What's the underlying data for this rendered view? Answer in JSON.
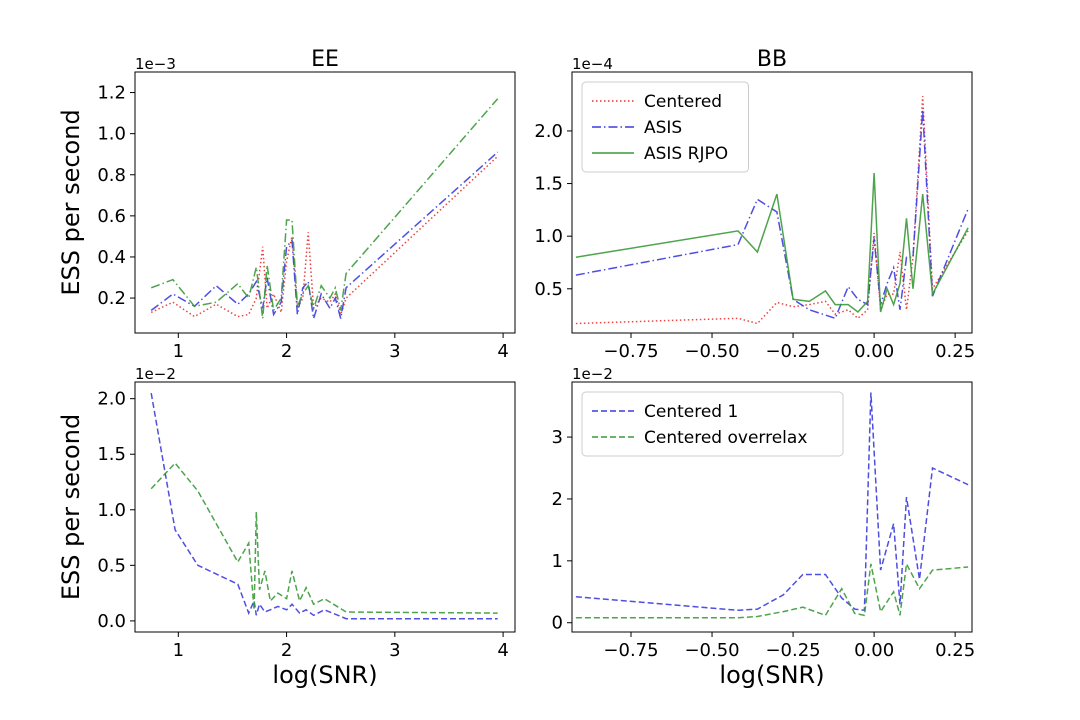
{
  "chart_data": [
    {
      "type": "line",
      "title": "EE",
      "y_label": "ESS per second",
      "offset_text": "1e−3",
      "x": [
        0.75,
        0.95,
        1.15,
        1.35,
        1.55,
        1.65,
        1.72,
        1.78,
        1.82,
        1.88,
        1.95,
        2.0,
        2.05,
        2.1,
        2.15,
        2.2,
        2.25,
        2.32,
        2.4,
        2.45,
        2.5,
        2.55,
        3.95
      ],
      "series": [
        {
          "color": "#e8302e",
          "linestyle": "dotted",
          "values": [
            0.13,
            0.18,
            0.11,
            0.17,
            0.11,
            0.12,
            0.2,
            0.45,
            0.15,
            0.22,
            0.13,
            0.38,
            0.5,
            0.15,
            0.2,
            0.52,
            0.15,
            0.2,
            0.18,
            0.22,
            0.12,
            0.2,
            0.89
          ]
        },
        {
          "color": "#3b3be0",
          "linestyle": "dashdot",
          "values": [
            0.14,
            0.22,
            0.16,
            0.26,
            0.17,
            0.22,
            0.28,
            0.15,
            0.3,
            0.12,
            0.18,
            0.45,
            0.48,
            0.12,
            0.25,
            0.28,
            0.1,
            0.22,
            0.15,
            0.2,
            0.1,
            0.25,
            0.91
          ]
        },
        {
          "color": "#3a9a3a",
          "linestyle": "dashdot",
          "values": [
            0.25,
            0.29,
            0.16,
            0.18,
            0.27,
            0.2,
            0.35,
            0.1,
            0.36,
            0.14,
            0.2,
            0.58,
            0.58,
            0.16,
            0.22,
            0.26,
            0.15,
            0.26,
            0.2,
            0.25,
            0.14,
            0.32,
            1.17
          ]
        }
      ],
      "xlim": [
        0.6,
        4.11
      ],
      "xticks": [
        1,
        2,
        3,
        4
      ],
      "ylim": [
        0.03,
        1.3
      ],
      "yticks": [
        0.2,
        0.4,
        0.6,
        0.8,
        {
          "value": 1.0,
          "label": "1.0"
        },
        1.2
      ]
    },
    {
      "type": "line",
      "title": "BB",
      "offset_text": "1e−4",
      "legend": "upper left",
      "x": [
        -0.92,
        -0.42,
        -0.36,
        -0.3,
        -0.25,
        -0.2,
        -0.15,
        -0.12,
        -0.08,
        -0.05,
        -0.02,
        0.0,
        0.02,
        0.04,
        0.06,
        0.08,
        0.1,
        0.12,
        0.15,
        0.18,
        0.29
      ],
      "series": [
        {
          "name": "Centered",
          "color": "#e8302e",
          "linestyle": "dotted",
          "values": [
            0.17,
            0.22,
            0.17,
            0.37,
            0.33,
            0.35,
            0.38,
            0.26,
            0.3,
            0.22,
            0.3,
            1.03,
            0.3,
            0.45,
            0.45,
            0.85,
            0.3,
            0.8,
            2.33,
            0.5,
            1.05
          ]
        },
        {
          "name": "ASIS",
          "color": "#3b3be0",
          "linestyle": "dashdot",
          "values": [
            0.63,
            0.92,
            1.35,
            1.23,
            0.4,
            0.3,
            0.25,
            0.22,
            0.52,
            0.4,
            0.35,
            0.98,
            0.35,
            0.55,
            0.7,
            0.3,
            0.8,
            0.8,
            2.2,
            0.43,
            1.26
          ]
        },
        {
          "name": "ASIS RJPO",
          "color": "#3a9a3a",
          "linestyle": "solid",
          "values": [
            0.8,
            1.05,
            0.85,
            1.4,
            0.4,
            0.38,
            0.48,
            0.35,
            0.35,
            0.28,
            0.38,
            1.6,
            0.28,
            0.5,
            0.35,
            0.55,
            1.17,
            0.5,
            1.4,
            0.45,
            1.08
          ]
        }
      ],
      "xlim": [
        -0.932,
        0.302
      ],
      "xticks": [
        {
          "value": -0.75,
          "label": "−0.75"
        },
        {
          "value": -0.5,
          "label": "−0.50"
        },
        {
          "value": -0.25,
          "label": "−0.25"
        },
        {
          "value": 0,
          "label": "0.00"
        },
        0.25
      ],
      "ylim": [
        0.08,
        2.56
      ],
      "yticks": [
        0.5,
        {
          "value": 1.0,
          "label": "1.0"
        },
        1.5,
        {
          "value": 2.0,
          "label": "2.0"
        }
      ]
    },
    {
      "type": "line",
      "x_label": "log(SNR)",
      "y_label": "ESS per second",
      "offset_text": "1e−2",
      "x": [
        0.75,
        0.97,
        1.18,
        1.55,
        1.65,
        1.7,
        1.72,
        1.75,
        1.8,
        1.85,
        1.92,
        2.0,
        2.05,
        2.12,
        2.18,
        2.25,
        2.35,
        2.55,
        3.95
      ],
      "series": [
        {
          "color": "#3b3be0",
          "linestyle": "dashed",
          "values": [
            2.05,
            0.82,
            0.5,
            0.33,
            0.07,
            0.18,
            0.05,
            0.15,
            0.08,
            0.1,
            0.13,
            0.1,
            0.15,
            0.07,
            0.1,
            0.05,
            0.1,
            0.02,
            0.02
          ]
        },
        {
          "color": "#3a9a3a",
          "linestyle": "dashed",
          "values": [
            1.19,
            1.42,
            1.17,
            0.53,
            0.7,
            0.1,
            0.98,
            0.28,
            0.45,
            0.18,
            0.25,
            0.2,
            0.45,
            0.18,
            0.3,
            0.15,
            0.2,
            0.08,
            0.07
          ]
        }
      ],
      "xlim": [
        0.6,
        4.11
      ],
      "xticks": [
        1,
        2,
        3,
        4
      ],
      "ylim": [
        -0.1,
        2.15
      ],
      "yticks": [
        {
          "value": 0,
          "label": "0.0"
        },
        0.5,
        {
          "value": 1.0,
          "label": "1.0"
        },
        1.5,
        {
          "value": 2.0,
          "label": "2.0"
        }
      ]
    },
    {
      "type": "line",
      "x_label": "log(SNR)",
      "offset_text": "1e−2",
      "legend": "upper left",
      "x": [
        -0.92,
        -0.42,
        -0.36,
        -0.28,
        -0.22,
        -0.15,
        -0.1,
        -0.06,
        -0.03,
        -0.01,
        0.02,
        0.06,
        0.08,
        0.1,
        0.14,
        0.18,
        0.29
      ],
      "series": [
        {
          "name": "Centered 1",
          "color": "#3b3be0",
          "linestyle": "dashed",
          "values": [
            0.42,
            0.2,
            0.22,
            0.45,
            0.78,
            0.78,
            0.4,
            0.22,
            0.2,
            3.72,
            0.85,
            1.6,
            0.3,
            2.03,
            0.7,
            2.5,
            2.23
          ]
        },
        {
          "name": "Centered overrelax",
          "color": "#3a9a3a",
          "linestyle": "dashed",
          "values": [
            0.08,
            0.08,
            0.1,
            0.18,
            0.25,
            0.12,
            0.55,
            0.15,
            0.12,
            0.95,
            0.18,
            0.5,
            0.12,
            0.95,
            0.55,
            0.85,
            0.9
          ]
        }
      ],
      "xlim": [
        -0.932,
        0.302
      ],
      "xticks": [
        {
          "value": -0.75,
          "label": "−0.75"
        },
        {
          "value": -0.5,
          "label": "−0.50"
        },
        {
          "value": -0.25,
          "label": "−0.25"
        },
        {
          "value": 0,
          "label": "0.00"
        },
        0.25
      ],
      "ylim": [
        -0.15,
        3.89
      ],
      "yticks": [
        0,
        1,
        2,
        3
      ]
    }
  ]
}
